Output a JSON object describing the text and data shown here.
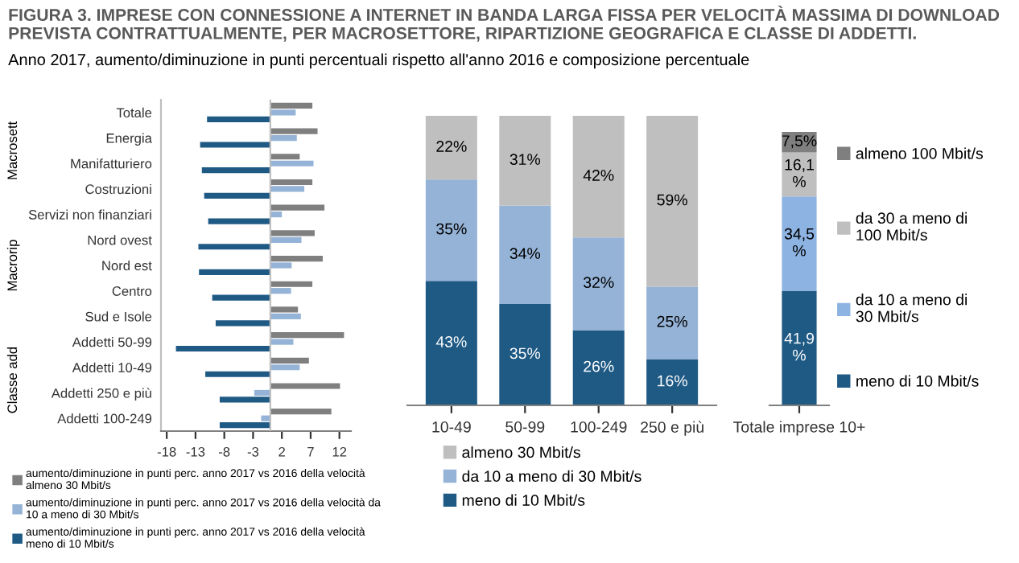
{
  "chart_data": [
    {
      "type": "bar",
      "orientation": "horizontal",
      "title": "FIGURA 3. IMPRESE CON CONNESSIONE A INTERNET IN BANDA LARGA FISSA PER VELOCITÀ MASSIMA DI DOWNLOAD PREVISTA CONTRATTUALMENTE, PER MACROSETTORE, RIPARTIZIONE GEOGRAFICA E CLASSE DI ADDETTI.",
      "subtitle": "Anno 2017, aumento/diminuzione in punti percentuali rispetto all'anno 2016 e composizione percentuale",
      "categories": [
        "Totale",
        "Energia",
        "Manifatturiero",
        "Costruzioni",
        "Servizi non finanziari",
        "Nord ovest",
        "Nord est",
        "Centro",
        "Sud e Isole",
        "Addetti 50-99",
        "Addetti 10-49",
        "Addetti 250 e più",
        "Addetti 100-249"
      ],
      "series": [
        {
          "name": "aumento/diminuzione in punti perc. anno 2017 vs 2016 della velocità\nalmeno 30 Mbit/s",
          "color": "#7f7f7f",
          "values": [
            7.3,
            8.2,
            5.1,
            7.3,
            9.4,
            7.7,
            9.1,
            7.3,
            4.8,
            12.8,
            6.7,
            12.1,
            10.6
          ]
        },
        {
          "name": "aumento/diminuzione in punti perc. anno 2017 vs 2016 della velocità da\n10 a meno di 30 Mbit/s",
          "color": "#95b3d7",
          "values": [
            4.4,
            4.6,
            7.5,
            5.9,
            2.0,
            5.4,
            3.7,
            3.6,
            5.3,
            4.0,
            5.1,
            -2.8,
            -1.6
          ]
        },
        {
          "name": "aumento/diminuzione in punti perc. anno 2017 vs 2016 della velocità\nmeno di 10 Mbit/s",
          "color": "#1f5a85",
          "values": [
            -11.0,
            -12.2,
            -11.9,
            -11.5,
            -10.8,
            -12.5,
            -12.4,
            -10.1,
            -9.5,
            -16.4,
            -11.3,
            -8.8,
            -8.8
          ]
        }
      ],
      "xlim": [
        -19,
        14
      ],
      "xticks": [
        -18,
        -13,
        -8,
        -3,
        2,
        7,
        12
      ],
      "ref_lines": [
        {
          "axis": "x",
          "value": 0,
          "color": "#bfbfbf"
        }
      ],
      "annotations": [
        "Macrosett",
        "Macrorip",
        "Classe add"
      ],
      "legend": "bottom",
      "grid": false
    },
    {
      "type": "bar",
      "stacked": true,
      "categories": [
        "10-49",
        "50-99",
        "100-249",
        "250 e più"
      ],
      "series": [
        {
          "name": "meno di 10 Mbit/s",
          "color": "#1f5a85",
          "values": [
            43,
            35,
            26,
            16
          ],
          "value_labels": [
            "43%",
            "35%",
            "26%",
            "16%"
          ]
        },
        {
          "name": "da 10 a meno di 30 Mbit/s",
          "color": "#95b3d7",
          "values": [
            35,
            34,
            32,
            25
          ],
          "value_labels": [
            "35%",
            "34%",
            "32%",
            "25%"
          ]
        },
        {
          "name": "almeno 30 Mbit/s",
          "color": "#bfbfbf",
          "values": [
            22,
            31,
            42,
            59
          ],
          "value_labels": [
            "22%",
            "31%",
            "42%",
            "59%"
          ]
        }
      ],
      "tick_labels": "x",
      "legend": "bottom",
      "grid": false
    },
    {
      "type": "bar",
      "stacked": true,
      "categories": [
        "Totale imprese 10+"
      ],
      "series": [
        {
          "name": "meno di 10 Mbit/s",
          "color": "#1f5a85",
          "values": [
            41.9
          ],
          "value_labels": [
            "41,9\n%"
          ]
        },
        {
          "name": "da 10 a meno di\n30 Mbit/s",
          "color": "#8db3e2",
          "values": [
            34.5
          ],
          "value_labels": [
            "34,5\n%"
          ]
        },
        {
          "name": "da 30 a meno di\n100 Mbit/s",
          "color": "#bfbfbf",
          "values": [
            16.1
          ],
          "value_labels": [
            "16,1\n%"
          ]
        },
        {
          "name": "almeno 100 Mbit/s",
          "color": "#7f7f7f",
          "values": [
            7.5
          ],
          "value_labels": [
            "7,5%"
          ]
        }
      ],
      "tick_labels": "x",
      "legend": "right",
      "grid": false
    }
  ]
}
